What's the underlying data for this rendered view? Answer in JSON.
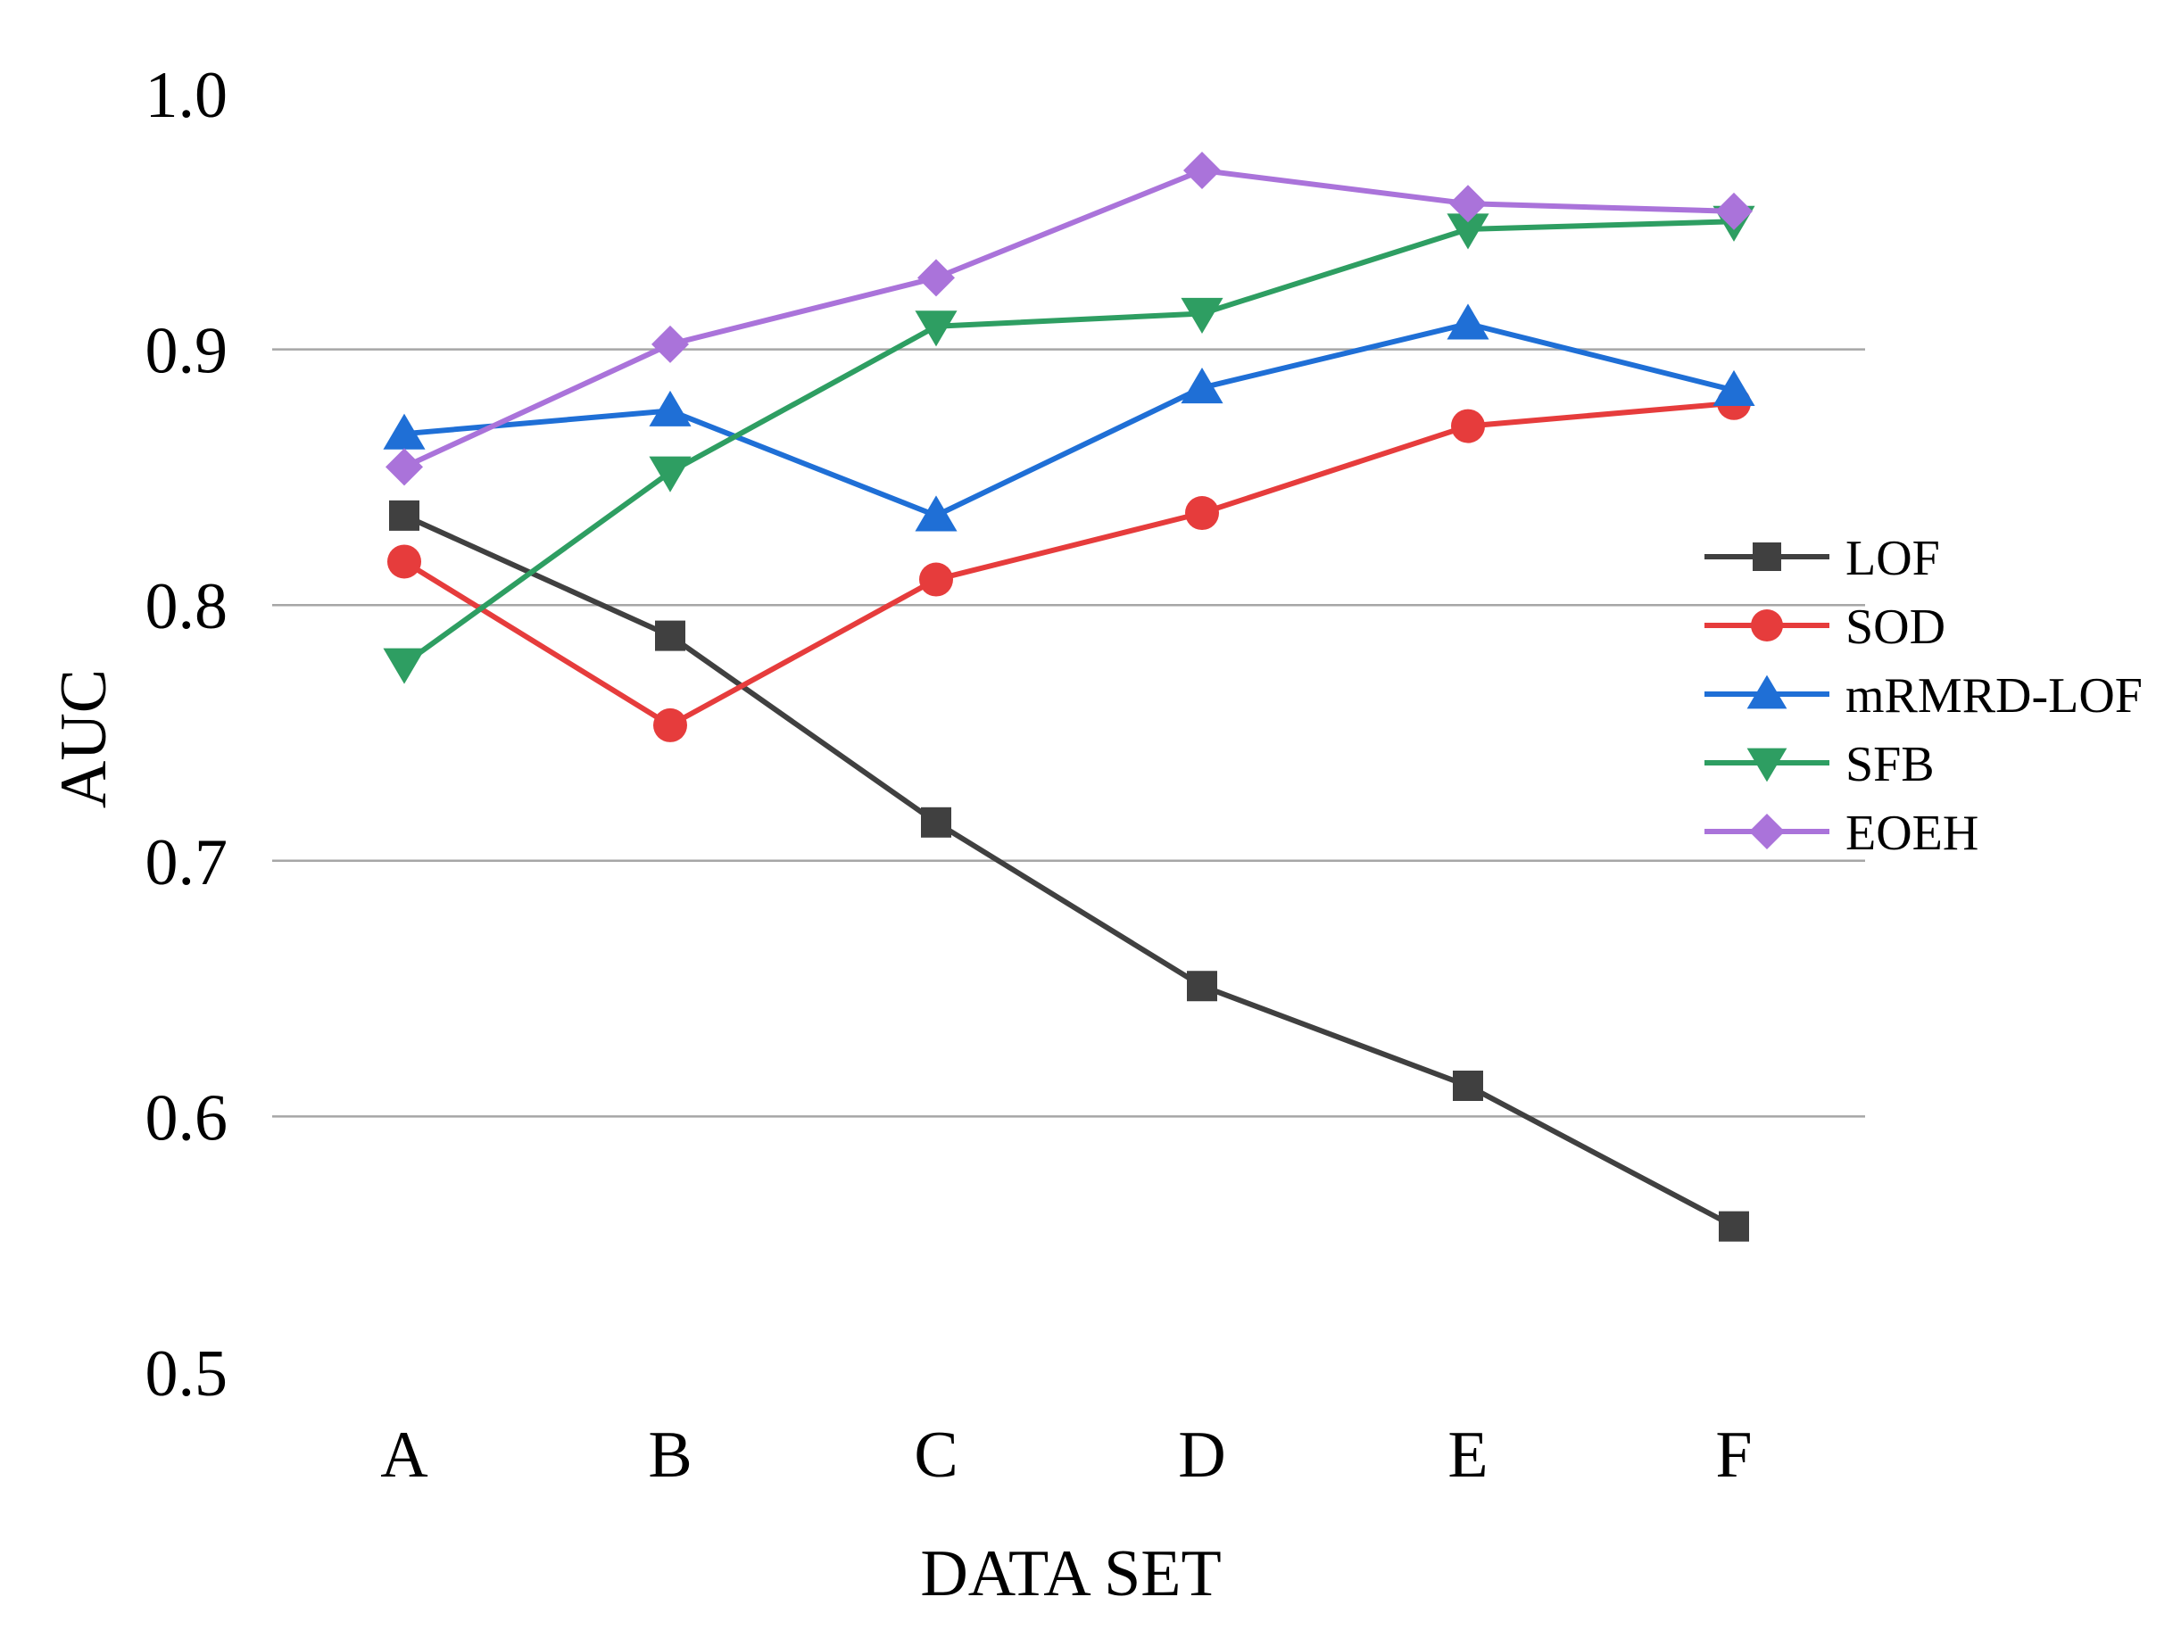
{
  "chart_data": {
    "type": "line",
    "title": "",
    "xlabel": "DATA SET",
    "ylabel": "AUC",
    "categories": [
      "A",
      "B",
      "C",
      "D",
      "E",
      "F"
    ],
    "ylim": [
      0.5,
      1.0
    ],
    "yticks": [
      0.5,
      0.6,
      0.7,
      0.8,
      0.9,
      1.0
    ],
    "ytick_labels": [
      "0.5",
      "0.6",
      "0.7",
      "0.8",
      "0.9",
      "1.0"
    ],
    "grid": true,
    "legend_position": "right",
    "series": [
      {
        "name": "LOF",
        "color": "#404040",
        "marker": "square",
        "values": [
          0.835,
          0.788,
          0.715,
          0.651,
          0.612,
          0.557
        ]
      },
      {
        "name": "SOD",
        "color": "#e63c3c",
        "marker": "circle",
        "values": [
          0.817,
          0.753,
          0.81,
          0.836,
          0.87,
          0.879
        ]
      },
      {
        "name": "mRMRD-LOF",
        "color": "#1f6fd6",
        "marker": "triangle-up",
        "values": [
          0.867,
          0.876,
          0.835,
          0.885,
          0.91,
          0.884
        ]
      },
      {
        "name": "SFB",
        "color": "#2e9e62",
        "marker": "triangle-down",
        "values": [
          0.777,
          0.852,
          0.909,
          0.914,
          0.947,
          0.95
        ]
      },
      {
        "name": "EOEH",
        "color": "#aa73da",
        "marker": "diamond",
        "values": [
          0.854,
          0.902,
          0.928,
          0.97,
          0.957,
          0.954
        ]
      }
    ]
  }
}
